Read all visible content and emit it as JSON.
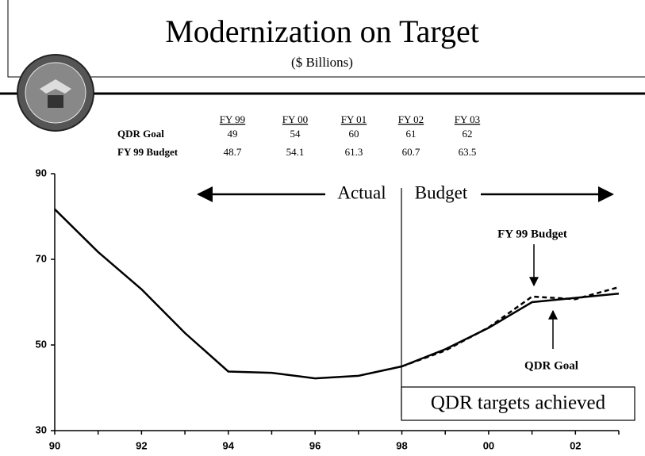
{
  "header": {
    "title": "Modernization on Target",
    "subtitle": "($ Billions)"
  },
  "table": {
    "columns": [
      "FY 99",
      "FY 00",
      "FY 01",
      "FY 02",
      "FY 03"
    ],
    "rows": [
      {
        "label": "QDR Goal",
        "values": [
          "49",
          "54",
          "60",
          "61",
          "62"
        ]
      },
      {
        "label": "FY 99 Budget",
        "values": [
          "48.7",
          "54.1",
          "61.3",
          "60.7",
          "63.5"
        ]
      }
    ]
  },
  "chart_data": {
    "type": "line",
    "categories": [
      "90",
      null,
      "92",
      null,
      "94",
      null,
      "96",
      null,
      "98",
      null,
      "00",
      null,
      "02",
      null
    ],
    "series": [
      {
        "name": "QDR Goal",
        "color": "#000000",
        "dash": false,
        "values": [
          81.7,
          71.7,
          63,
          52.8,
          43.8,
          43.5,
          42.2,
          42.8,
          45,
          49,
          54,
          60,
          61,
          62
        ]
      },
      {
        "name": "FY 99 Budget",
        "color": "#000000",
        "dash": true,
        "values": [
          null,
          null,
          null,
          null,
          null,
          null,
          null,
          null,
          45,
          48.7,
          54.1,
          61.3,
          60.7,
          63.5
        ]
      }
    ],
    "ylim": [
      30,
      90
    ],
    "yticks": [
      30,
      50,
      70,
      90
    ],
    "annotations": [
      "Actual",
      "Budget",
      "QDR targets achieved"
    ]
  }
}
